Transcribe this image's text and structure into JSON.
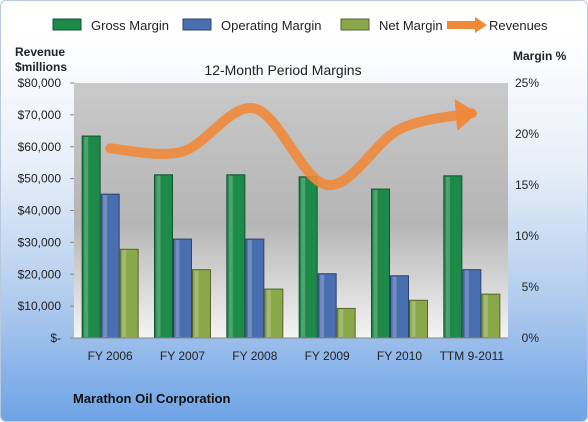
{
  "chart_data": {
    "type": "bar",
    "title": "12-Month Period Margins",
    "left_axis_label": [
      "Revenue",
      "$millions"
    ],
    "right_axis_label": "Margin %",
    "categories": [
      "FY 2006",
      "FY 2007",
      "FY 2008",
      "FY 2009",
      "FY 2010",
      "TTM 9-2011"
    ],
    "left_axis": {
      "min": 0,
      "max": 80000,
      "ticks": [
        0,
        10000,
        20000,
        30000,
        40000,
        50000,
        60000,
        70000,
        80000
      ],
      "tick_labels": [
        "$-",
        "$10,000",
        "$20,000",
        "$30,000",
        "$40,000",
        "$50,000",
        "$60,000",
        "$70,000",
        "$80,000"
      ]
    },
    "right_axis": {
      "min": 0,
      "max": 25,
      "ticks": [
        0,
        5,
        10,
        15,
        20,
        25
      ],
      "tick_labels": [
        "0%",
        "5%",
        "10%",
        "15%",
        "20%",
        "25%"
      ]
    },
    "series": [
      {
        "name": "Gross Margin",
        "kind": "bar",
        "axis": "right",
        "color": "#1e8a4a",
        "values": [
          19.8,
          16.0,
          16.0,
          15.8,
          14.6,
          15.9
        ]
      },
      {
        "name": "Operating Margin",
        "kind": "bar",
        "axis": "right",
        "color": "#4a6fb0",
        "values": [
          14.1,
          9.7,
          9.7,
          6.3,
          6.1,
          6.7
        ]
      },
      {
        "name": "Net Margin",
        "kind": "bar",
        "axis": "right",
        "color": "#8aa84a",
        "values": [
          8.7,
          6.7,
          4.8,
          2.9,
          3.7,
          4.3
        ]
      },
      {
        "name": "Revenues",
        "kind": "line",
        "axis": "left",
        "color": "#f0883a",
        "values": [
          59500,
          58500,
          72000,
          48000,
          65500,
          70500
        ]
      }
    ],
    "grid": false,
    "legend": "top"
  },
  "footer_text": "Marathon Oil Corporation"
}
